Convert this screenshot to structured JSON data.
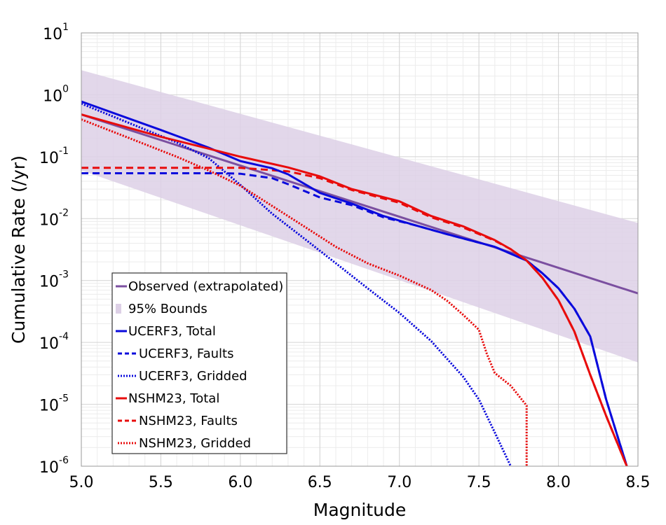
{
  "chart_data": {
    "type": "line",
    "title": "",
    "xlabel": "Magnitude",
    "ylabel": "Cumulative Rate (/yr)",
    "xlim": [
      5.0,
      8.5
    ],
    "ylim": [
      1e-06,
      10
    ],
    "yscale": "log",
    "grid": true,
    "legend_position": "bottom-left",
    "x_ticks": [
      "5.0",
      "5.5",
      "6.0",
      "6.5",
      "7.0",
      "7.5",
      "8.0",
      "8.5"
    ],
    "y_ticks": [
      {
        "base": "10",
        "exp": "-6"
      },
      {
        "base": "10",
        "exp": "-5"
      },
      {
        "base": "10",
        "exp": "-4"
      },
      {
        "base": "10",
        "exp": "-3"
      },
      {
        "base": "10",
        "exp": "-2"
      },
      {
        "base": "10",
        "exp": "-1"
      },
      {
        "base": "10",
        "exp": "0"
      },
      {
        "base": "10",
        "exp": "1"
      }
    ],
    "band": {
      "name": "95% Bounds",
      "color": "#ddd0e6",
      "lower": [
        [
          5.0,
          0.06
        ],
        [
          8.5,
          4.75e-05
        ]
      ],
      "upper": [
        [
          5.0,
          2.5
        ],
        [
          8.5,
          0.0085
        ]
      ]
    },
    "series": [
      {
        "name": "Observed (extrapolated)",
        "color": "#7b4fa0",
        "dash": "solid",
        "points": [
          [
            5.0,
            0.48
          ],
          [
            8.5,
            0.00062
          ]
        ]
      },
      {
        "name": "UCERF3, Total",
        "color": "#0a0adc",
        "dash": "solid",
        "points": [
          [
            5.0,
            0.78
          ],
          [
            5.5,
            0.27
          ],
          [
            5.8,
            0.14
          ],
          [
            6.0,
            0.085
          ],
          [
            6.2,
            0.065
          ],
          [
            6.3,
            0.052
          ],
          [
            6.5,
            0.026
          ],
          [
            6.7,
            0.0175
          ],
          [
            6.9,
            0.011
          ],
          [
            7.1,
            0.0078
          ],
          [
            7.3,
            0.0056
          ],
          [
            7.6,
            0.0035
          ],
          [
            7.8,
            0.0021
          ],
          [
            7.9,
            0.0013
          ],
          [
            8.0,
            0.00075
          ],
          [
            8.1,
            0.00035
          ],
          [
            8.2,
            0.000125
          ],
          [
            8.3,
            1.2e-05
          ],
          [
            8.43,
            1e-06
          ]
        ]
      },
      {
        "name": "UCERF3, Faults",
        "color": "#0a0adc",
        "dash": "dashed",
        "points": [
          [
            5.0,
            0.054
          ],
          [
            5.5,
            0.054
          ],
          [
            5.9,
            0.054
          ],
          [
            6.0,
            0.053
          ],
          [
            6.2,
            0.045
          ],
          [
            6.3,
            0.036
          ],
          [
            6.5,
            0.022
          ],
          [
            6.7,
            0.0165
          ],
          [
            6.9,
            0.0105
          ],
          [
            7.1,
            0.0078
          ],
          [
            7.3,
            0.0056
          ],
          [
            7.6,
            0.0035
          ],
          [
            7.8,
            0.0021
          ],
          [
            7.9,
            0.0013
          ],
          [
            8.0,
            0.00075
          ],
          [
            8.1,
            0.00035
          ],
          [
            8.2,
            0.000125
          ],
          [
            8.3,
            1.2e-05
          ],
          [
            8.43,
            1e-06
          ]
        ]
      },
      {
        "name": "UCERF3, Gridded",
        "color": "#0a0adc",
        "dash": "dotted",
        "points": [
          [
            5.0,
            0.72
          ],
          [
            5.3,
            0.35
          ],
          [
            5.6,
            0.17
          ],
          [
            5.8,
            0.095
          ],
          [
            6.0,
            0.035
          ],
          [
            6.2,
            0.012
          ],
          [
            6.4,
            0.0048
          ],
          [
            6.6,
            0.0019
          ],
          [
            6.8,
            0.00075
          ],
          [
            7.0,
            0.0003
          ],
          [
            7.2,
            0.000105
          ],
          [
            7.4,
            2.8e-05
          ],
          [
            7.5,
            1.2e-05
          ],
          [
            7.6,
            3.5e-06
          ],
          [
            7.7,
            1e-06
          ]
        ]
      },
      {
        "name": "NSHM23, Total",
        "color": "#e80c0c",
        "dash": "solid",
        "points": [
          [
            5.0,
            0.48
          ],
          [
            5.5,
            0.21
          ],
          [
            5.8,
            0.135
          ],
          [
            6.0,
            0.1
          ],
          [
            6.3,
            0.067
          ],
          [
            6.5,
            0.048
          ],
          [
            6.7,
            0.03
          ],
          [
            7.0,
            0.019
          ],
          [
            7.2,
            0.011
          ],
          [
            7.4,
            0.0075
          ],
          [
            7.6,
            0.0045
          ],
          [
            7.7,
            0.0032
          ],
          [
            7.8,
            0.0021
          ],
          [
            7.9,
            0.0011
          ],
          [
            8.0,
            0.00048
          ],
          [
            8.1,
            0.00015
          ],
          [
            8.2,
            3e-05
          ],
          [
            8.3,
            6.5e-06
          ],
          [
            8.43,
            1e-06
          ]
        ]
      },
      {
        "name": "NSHM23, Faults",
        "color": "#e80c0c",
        "dash": "dashed",
        "points": [
          [
            5.0,
            0.066
          ],
          [
            5.5,
            0.066
          ],
          [
            6.0,
            0.066
          ],
          [
            6.3,
            0.058
          ],
          [
            6.5,
            0.045
          ],
          [
            6.7,
            0.029
          ],
          [
            7.0,
            0.018
          ],
          [
            7.2,
            0.0105
          ],
          [
            7.4,
            0.0072
          ],
          [
            7.6,
            0.0044
          ],
          [
            7.7,
            0.0032
          ],
          [
            7.8,
            0.0021
          ],
          [
            7.9,
            0.0011
          ],
          [
            8.0,
            0.00048
          ],
          [
            8.1,
            0.00015
          ],
          [
            8.2,
            3e-05
          ],
          [
            8.3,
            6.5e-06
          ],
          [
            8.43,
            1e-06
          ]
        ]
      },
      {
        "name": "NSHM23, Gridded",
        "color": "#e80c0c",
        "dash": "dotted",
        "points": [
          [
            5.0,
            0.4
          ],
          [
            5.3,
            0.2
          ],
          [
            5.6,
            0.1
          ],
          [
            5.8,
            0.06
          ],
          [
            6.0,
            0.034
          ],
          [
            6.2,
            0.016
          ],
          [
            6.4,
            0.0075
          ],
          [
            6.6,
            0.0035
          ],
          [
            6.8,
            0.0019
          ],
          [
            7.0,
            0.0012
          ],
          [
            7.2,
            0.0007
          ],
          [
            7.3,
            0.00047
          ],
          [
            7.4,
            0.00028
          ],
          [
            7.5,
            0.00016
          ],
          [
            7.55,
            6.5e-05
          ],
          [
            7.6,
            3.2e-05
          ],
          [
            7.7,
            2e-05
          ],
          [
            7.8,
            9.5e-06
          ],
          [
            7.8,
            1e-06
          ]
        ]
      }
    ]
  }
}
